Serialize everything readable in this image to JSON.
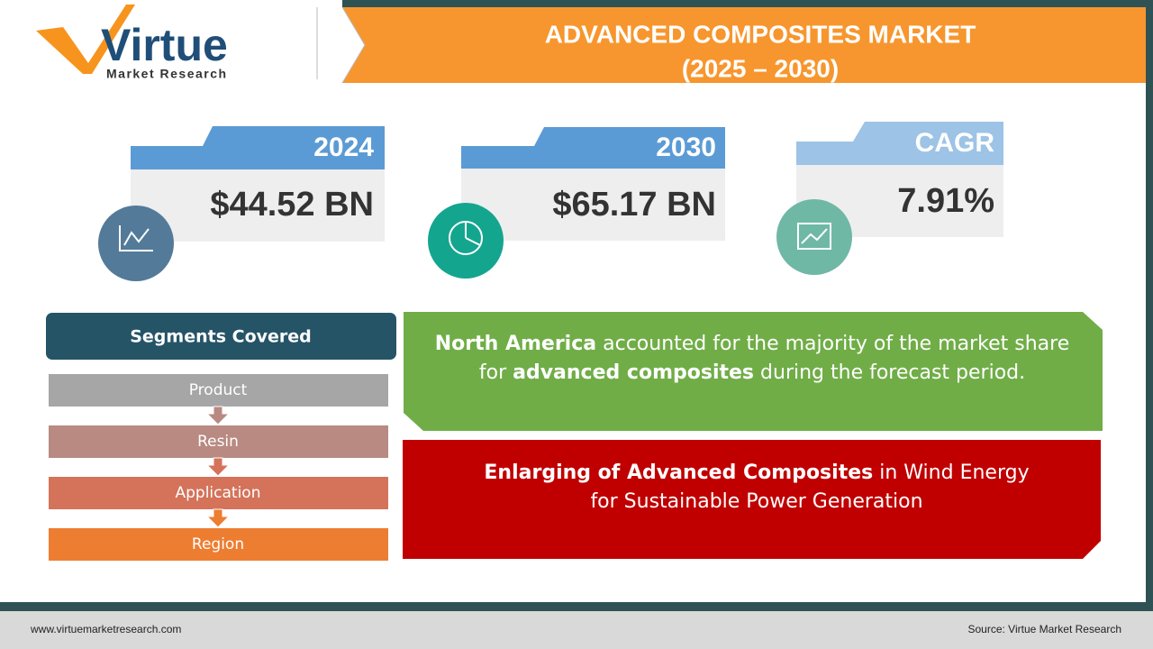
{
  "logo": {
    "name": "Virtue",
    "tagline": "Market Research"
  },
  "header": {
    "title": "ADVANCED COMPOSITES MARKET",
    "subtitle": "(2025 – 2030)"
  },
  "cards": [
    {
      "label": "2024",
      "value": "$44.52 BN"
    },
    {
      "label": "2030",
      "value": "$65.17 BN"
    },
    {
      "label": "CAGR",
      "value": "7.91%"
    }
  ],
  "segments": {
    "title": "Segments Covered",
    "items": [
      "Product",
      "Resin",
      "Application",
      "Region"
    ]
  },
  "highlights": [
    {
      "parts": [
        "North America",
        "accounted for the majority of the market share for",
        "advanced composites",
        "during the forecast period."
      ]
    },
    {
      "parts": [
        "Enlarging of Advanced Composites",
        "in Wind Energy for Sustainable Power Generation"
      ]
    }
  ],
  "footer": {
    "website": "www.virtuemarketresearch.com",
    "source": "Source: Virtue Market Research"
  }
}
